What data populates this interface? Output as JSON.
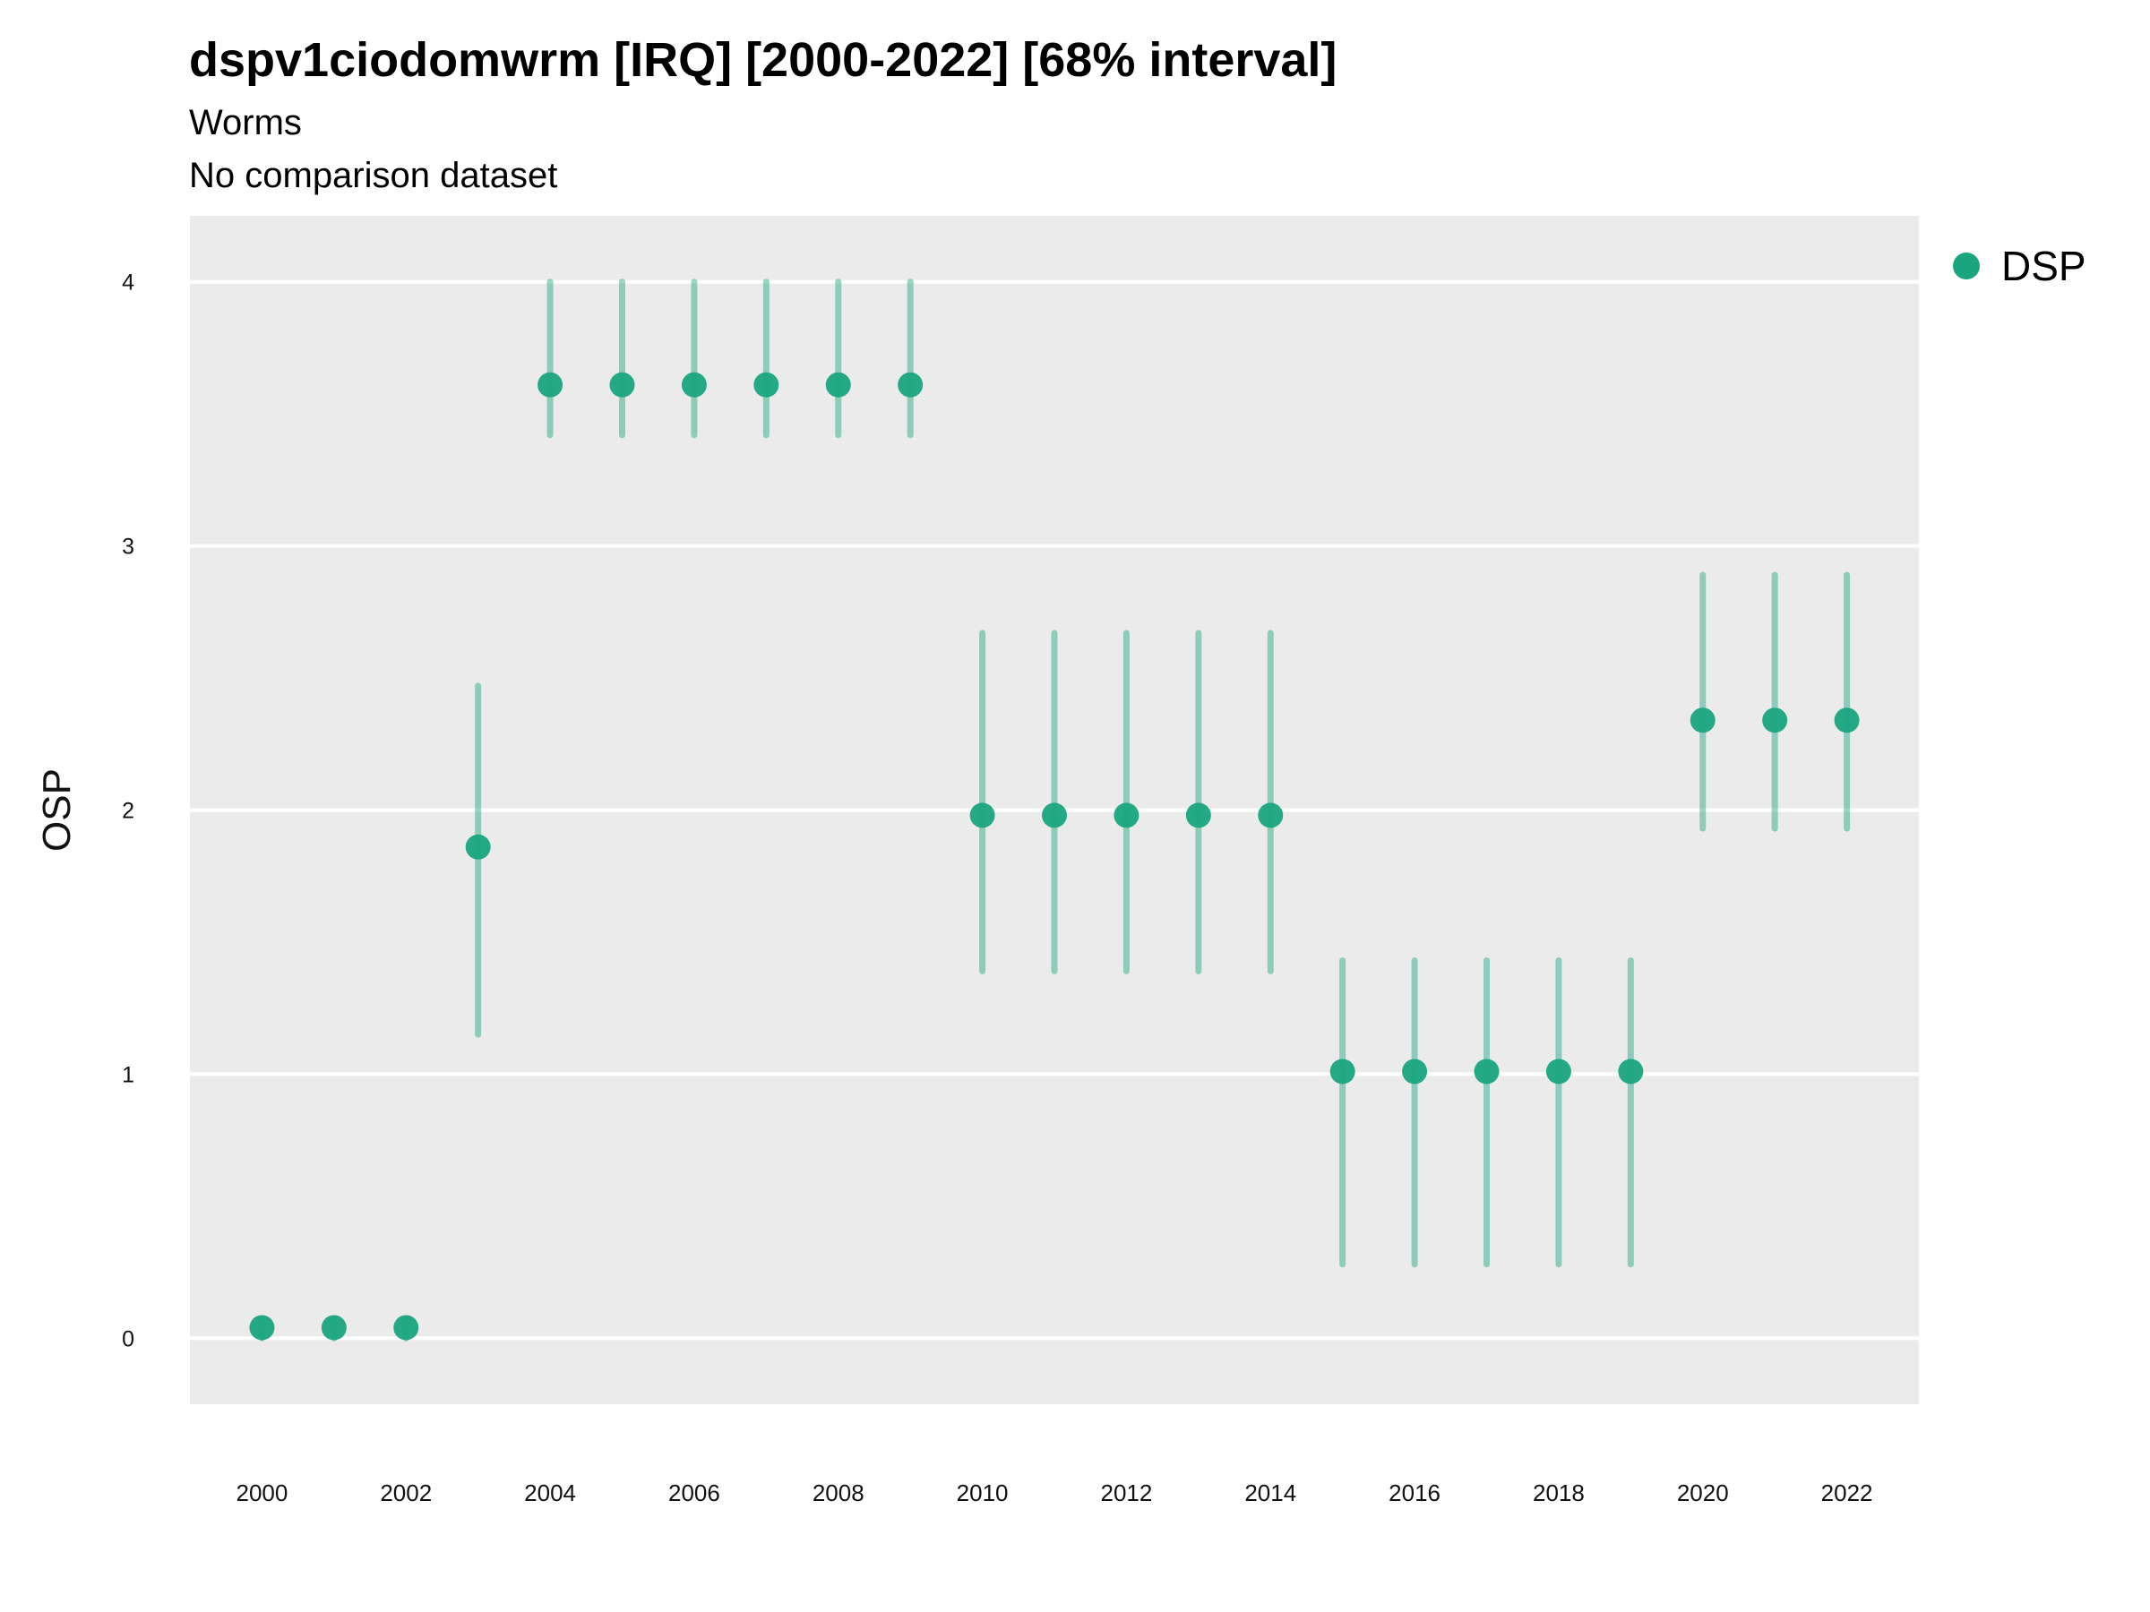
{
  "chart_data": {
    "type": "scatter",
    "title": "dspv1ciodomwrm [IRQ] [2000-2022] [68% interval]",
    "subtitle": "Worms",
    "subtitle2": "No comparison dataset",
    "xlabel": "",
    "ylabel": "OSP",
    "x_ticks": [
      2000,
      2002,
      2004,
      2006,
      2008,
      2010,
      2012,
      2014,
      2016,
      2018,
      2020,
      2022
    ],
    "y_ticks": [
      0,
      1,
      2,
      3,
      4
    ],
    "xlim": [
      1999,
      2023
    ],
    "ylim": [
      -0.25,
      4.25
    ],
    "grid": true,
    "legend_position": "right",
    "series": [
      {
        "name": "DSP",
        "color": "#1aa57e",
        "points": [
          {
            "x": 2000,
            "y": 0.04,
            "lo": 0.0,
            "hi": 0.07
          },
          {
            "x": 2001,
            "y": 0.04,
            "lo": 0.0,
            "hi": 0.07
          },
          {
            "x": 2002,
            "y": 0.04,
            "lo": 0.0,
            "hi": 0.07
          },
          {
            "x": 2003,
            "y": 1.86,
            "lo": 1.15,
            "hi": 2.47
          },
          {
            "x": 2004,
            "y": 3.61,
            "lo": 3.42,
            "hi": 4.0
          },
          {
            "x": 2005,
            "y": 3.61,
            "lo": 3.42,
            "hi": 4.0
          },
          {
            "x": 2006,
            "y": 3.61,
            "lo": 3.42,
            "hi": 4.0
          },
          {
            "x": 2007,
            "y": 3.61,
            "lo": 3.42,
            "hi": 4.0
          },
          {
            "x": 2008,
            "y": 3.61,
            "lo": 3.42,
            "hi": 4.0
          },
          {
            "x": 2009,
            "y": 3.61,
            "lo": 3.42,
            "hi": 4.0
          },
          {
            "x": 2010,
            "y": 1.98,
            "lo": 1.39,
            "hi": 2.67
          },
          {
            "x": 2011,
            "y": 1.98,
            "lo": 1.39,
            "hi": 2.67
          },
          {
            "x": 2012,
            "y": 1.98,
            "lo": 1.39,
            "hi": 2.67
          },
          {
            "x": 2013,
            "y": 1.98,
            "lo": 1.39,
            "hi": 2.67
          },
          {
            "x": 2014,
            "y": 1.98,
            "lo": 1.39,
            "hi": 2.67
          },
          {
            "x": 2015,
            "y": 1.01,
            "lo": 0.28,
            "hi": 1.43
          },
          {
            "x": 2016,
            "y": 1.01,
            "lo": 0.28,
            "hi": 1.43
          },
          {
            "x": 2017,
            "y": 1.01,
            "lo": 0.28,
            "hi": 1.43
          },
          {
            "x": 2018,
            "y": 1.01,
            "lo": 0.28,
            "hi": 1.43
          },
          {
            "x": 2019,
            "y": 1.01,
            "lo": 0.28,
            "hi": 1.43
          },
          {
            "x": 2020,
            "y": 2.34,
            "lo": 1.93,
            "hi": 2.89
          },
          {
            "x": 2021,
            "y": 2.34,
            "lo": 1.93,
            "hi": 2.89
          },
          {
            "x": 2022,
            "y": 2.34,
            "lo": 1.93,
            "hi": 2.89
          }
        ]
      }
    ]
  }
}
